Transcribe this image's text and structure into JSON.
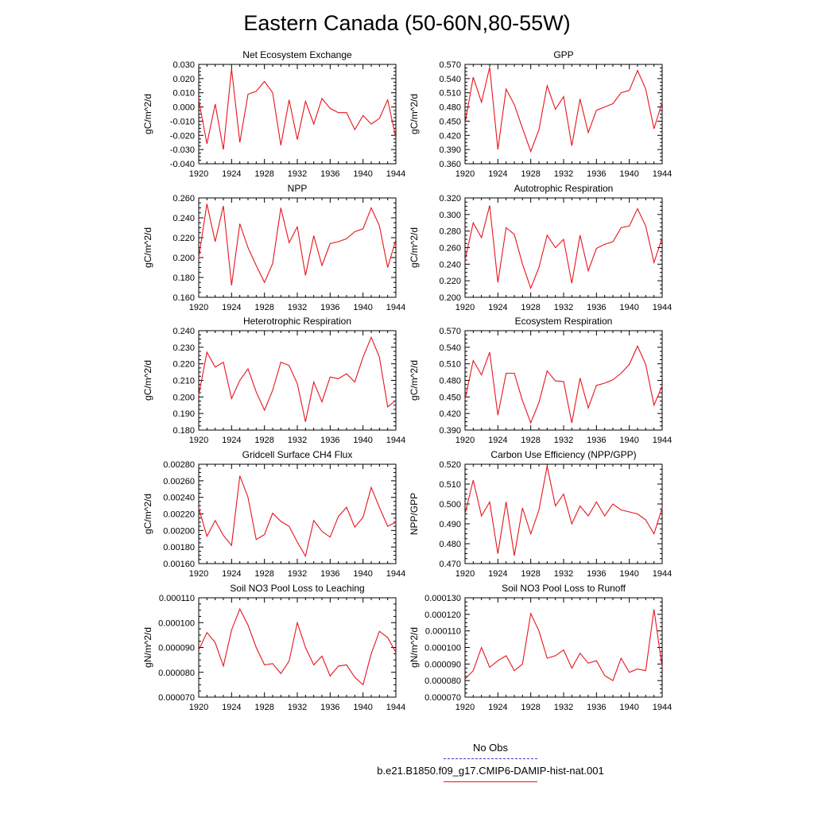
{
  "page_title": "Eastern Canada (50-60N,80-55W)",
  "colors": {
    "series": "#e8141c",
    "no_obs": "#3b3bd4",
    "axis": "#000000"
  },
  "legend": {
    "no_obs": {
      "label": "No Obs",
      "color": "#3b3bd4",
      "style": "dashed"
    },
    "model": {
      "label": "b.e21.B1850.f09_g17.CMIP6-DAMIP-hist-nat.001",
      "color": "#e8141c",
      "style": "solid"
    }
  },
  "chart_data": [
    {
      "type": "line",
      "title": "Net Ecosystem Exchange",
      "ylabel": "gC/m^2/d",
      "xlabel": "",
      "xlim": [
        1920,
        1944
      ],
      "ylim": [
        -0.04,
        0.03
      ],
      "x_ticks": [
        1920,
        1924,
        1928,
        1932,
        1936,
        1940,
        1944
      ],
      "y_ticks": [
        "-0.040",
        "-0.030",
        "-0.020",
        "-0.010",
        "0.000",
        "0.010",
        "0.020",
        "0.030"
      ],
      "x": [
        1920,
        1921,
        1922,
        1923,
        1924,
        1925,
        1926,
        1927,
        1928,
        1929,
        1930,
        1931,
        1932,
        1933,
        1934,
        1935,
        1936,
        1937,
        1938,
        1939,
        1940,
        1941,
        1942,
        1943,
        1944
      ],
      "values": [
        0.005,
        -0.026,
        0.002,
        -0.03,
        0.027,
        -0.025,
        0.009,
        0.011,
        0.018,
        0.01,
        -0.027,
        0.005,
        -0.023,
        0.004,
        -0.012,
        0.006,
        -0.001,
        -0.004,
        -0.004,
        -0.016,
        -0.006,
        -0.012,
        -0.008,
        0.005,
        -0.022
      ]
    },
    {
      "type": "line",
      "title": "GPP",
      "ylabel": "gC/m^2/d",
      "xlabel": "",
      "xlim": [
        1920,
        1944
      ],
      "ylim": [
        0.36,
        0.57
      ],
      "x_ticks": [
        1920,
        1924,
        1928,
        1932,
        1936,
        1940,
        1944
      ],
      "y_ticks": [
        "0.360",
        "0.390",
        "0.420",
        "0.450",
        "0.480",
        "0.510",
        "0.540",
        "0.570"
      ],
      "x": [
        1920,
        1921,
        1922,
        1923,
        1924,
        1925,
        1926,
        1927,
        1928,
        1929,
        1930,
        1931,
        1932,
        1933,
        1934,
        1935,
        1936,
        1937,
        1938,
        1939,
        1940,
        1941,
        1942,
        1943,
        1944
      ],
      "values": [
        0.445,
        0.543,
        0.49,
        0.564,
        0.39,
        0.518,
        0.485,
        0.435,
        0.386,
        0.432,
        0.525,
        0.475,
        0.502,
        0.398,
        0.497,
        0.426,
        0.473,
        0.48,
        0.487,
        0.51,
        0.515,
        0.557,
        0.518,
        0.434,
        0.49
      ]
    },
    {
      "type": "line",
      "title": "NPP",
      "ylabel": "gC/m^2/d",
      "xlabel": "",
      "xlim": [
        1920,
        1944
      ],
      "ylim": [
        0.16,
        0.26
      ],
      "x_ticks": [
        1920,
        1924,
        1928,
        1932,
        1936,
        1940,
        1944
      ],
      "y_ticks": [
        "0.160",
        "0.180",
        "0.200",
        "0.220",
        "0.240",
        "0.260"
      ],
      "x": [
        1920,
        1921,
        1922,
        1923,
        1924,
        1925,
        1926,
        1927,
        1928,
        1929,
        1930,
        1931,
        1932,
        1933,
        1934,
        1935,
        1936,
        1937,
        1938,
        1939,
        1940,
        1941,
        1942,
        1943,
        1944
      ],
      "values": [
        0.2,
        0.254,
        0.216,
        0.252,
        0.172,
        0.234,
        0.21,
        0.192,
        0.175,
        0.194,
        0.25,
        0.215,
        0.231,
        0.182,
        0.222,
        0.192,
        0.214,
        0.216,
        0.219,
        0.226,
        0.229,
        0.25,
        0.232,
        0.19,
        0.218
      ]
    },
    {
      "type": "line",
      "title": "Autotrophic Respiration",
      "ylabel": "gC/m^2/d",
      "xlabel": "",
      "xlim": [
        1920,
        1944
      ],
      "ylim": [
        0.2,
        0.32
      ],
      "x_ticks": [
        1920,
        1924,
        1928,
        1932,
        1936,
        1940,
        1944
      ],
      "y_ticks": [
        "0.200",
        "0.220",
        "0.240",
        "0.260",
        "0.280",
        "0.300",
        "0.320"
      ],
      "x": [
        1920,
        1921,
        1922,
        1923,
        1924,
        1925,
        1926,
        1927,
        1928,
        1929,
        1930,
        1931,
        1932,
        1933,
        1934,
        1935,
        1936,
        1937,
        1938,
        1939,
        1940,
        1941,
        1942,
        1943,
        1944
      ],
      "values": [
        0.245,
        0.29,
        0.272,
        0.311,
        0.218,
        0.284,
        0.276,
        0.24,
        0.211,
        0.236,
        0.275,
        0.26,
        0.27,
        0.217,
        0.275,
        0.232,
        0.259,
        0.264,
        0.267,
        0.284,
        0.286,
        0.307,
        0.286,
        0.242,
        0.272
      ]
    },
    {
      "type": "line",
      "title": "Heterotrophic Respiration",
      "ylabel": "gC/m^2/d",
      "xlabel": "",
      "xlim": [
        1920,
        1944
      ],
      "ylim": [
        0.18,
        0.24
      ],
      "x_ticks": [
        1920,
        1924,
        1928,
        1932,
        1936,
        1940,
        1944
      ],
      "y_ticks": [
        "0.180",
        "0.190",
        "0.200",
        "0.210",
        "0.220",
        "0.230",
        "0.240"
      ],
      "x": [
        1920,
        1921,
        1922,
        1923,
        1924,
        1925,
        1926,
        1927,
        1928,
        1929,
        1930,
        1931,
        1932,
        1933,
        1934,
        1935,
        1936,
        1937,
        1938,
        1939,
        1940,
        1941,
        1942,
        1943,
        1944
      ],
      "values": [
        0.201,
        0.227,
        0.218,
        0.221,
        0.199,
        0.21,
        0.217,
        0.203,
        0.192,
        0.204,
        0.221,
        0.219,
        0.208,
        0.185,
        0.209,
        0.197,
        0.212,
        0.211,
        0.214,
        0.209,
        0.224,
        0.236,
        0.224,
        0.194,
        0.198
      ]
    },
    {
      "type": "line",
      "title": "Ecosystem Respiration",
      "ylabel": "gC/m^2/d",
      "xlabel": "",
      "xlim": [
        1920,
        1944
      ],
      "ylim": [
        0.39,
        0.57
      ],
      "x_ticks": [
        1920,
        1924,
        1928,
        1932,
        1936,
        1940,
        1944
      ],
      "y_ticks": [
        "0.390",
        "0.420",
        "0.450",
        "0.480",
        "0.510",
        "0.540",
        "0.570"
      ],
      "x": [
        1920,
        1921,
        1922,
        1923,
        1924,
        1925,
        1926,
        1927,
        1928,
        1929,
        1930,
        1931,
        1932,
        1933,
        1934,
        1935,
        1936,
        1937,
        1938,
        1939,
        1940,
        1941,
        1942,
        1943,
        1944
      ],
      "values": [
        0.445,
        0.516,
        0.49,
        0.531,
        0.417,
        0.493,
        0.493,
        0.443,
        0.403,
        0.44,
        0.497,
        0.479,
        0.478,
        0.403,
        0.484,
        0.43,
        0.471,
        0.475,
        0.481,
        0.493,
        0.509,
        0.542,
        0.509,
        0.435,
        0.47
      ]
    },
    {
      "type": "line",
      "title": "Gridcell Surface CH4 Flux",
      "ylabel": "gC/m^2/d",
      "xlabel": "",
      "xlim": [
        1920,
        1944
      ],
      "ylim": [
        0.0016,
        0.0028
      ],
      "x_ticks": [
        1920,
        1924,
        1928,
        1932,
        1936,
        1940,
        1944
      ],
      "y_ticks": [
        "0.00160",
        "0.00180",
        "0.00200",
        "0.00220",
        "0.00240",
        "0.00260",
        "0.00280"
      ],
      "x": [
        1920,
        1921,
        1922,
        1923,
        1924,
        1925,
        1926,
        1927,
        1928,
        1929,
        1930,
        1931,
        1932,
        1933,
        1934,
        1935,
        1936,
        1937,
        1938,
        1939,
        1940,
        1941,
        1942,
        1943,
        1944
      ],
      "values": [
        0.00227,
        0.00193,
        0.00212,
        0.00194,
        0.00182,
        0.00266,
        0.0024,
        0.00189,
        0.00195,
        0.00221,
        0.00211,
        0.00205,
        0.00186,
        0.00169,
        0.00212,
        0.00199,
        0.00192,
        0.00217,
        0.00228,
        0.00204,
        0.00216,
        0.00252,
        0.00228,
        0.00205,
        0.0021
      ]
    },
    {
      "type": "line",
      "title": "Carbon Use Efficiency (NPP/GPP)",
      "ylabel": "NPP/GPP",
      "xlabel": "",
      "xlim": [
        1920,
        1944
      ],
      "ylim": [
        0.47,
        0.52
      ],
      "x_ticks": [
        1920,
        1924,
        1928,
        1932,
        1936,
        1940,
        1944
      ],
      "y_ticks": [
        "0.470",
        "0.480",
        "0.490",
        "0.500",
        "0.510",
        "0.520"
      ],
      "x": [
        1920,
        1921,
        1922,
        1923,
        1924,
        1925,
        1926,
        1927,
        1928,
        1929,
        1930,
        1931,
        1932,
        1933,
        1934,
        1935,
        1936,
        1937,
        1938,
        1939,
        1940,
        1941,
        1942,
        1943,
        1944
      ],
      "values": [
        0.495,
        0.512,
        0.494,
        0.501,
        0.475,
        0.501,
        0.474,
        0.498,
        0.485,
        0.497,
        0.519,
        0.499,
        0.505,
        0.49,
        0.499,
        0.494,
        0.501,
        0.494,
        0.5,
        0.497,
        0.496,
        0.495,
        0.492,
        0.485,
        0.498
      ]
    },
    {
      "type": "line",
      "title": "Soil NO3 Pool Loss to Leaching",
      "ylabel": "gN/m^2/d",
      "xlabel": "",
      "xlim": [
        1920,
        1944
      ],
      "ylim": [
        7e-05,
        0.00011
      ],
      "x_ticks": [
        1920,
        1924,
        1928,
        1932,
        1936,
        1940,
        1944
      ],
      "y_ticks": [
        "0.000070",
        "0.000080",
        "0.000090",
        "0.000100",
        "0.000110"
      ],
      "x": [
        1920,
        1921,
        1922,
        1923,
        1924,
        1925,
        1926,
        1927,
        1928,
        1929,
        1930,
        1931,
        1932,
        1933,
        1934,
        1935,
        1936,
        1937,
        1938,
        1939,
        1940,
        1941,
        1942,
        1943,
        1944
      ],
      "values": [
        8.9e-05,
        9.6e-05,
        9.2e-05,
        8.25e-05,
        9.7e-05,
        0.0001055,
        9.9e-05,
        9e-05,
        8.3e-05,
        8.35e-05,
        7.95e-05,
        8.45e-05,
        0.0001,
        9e-05,
        8.3e-05,
        8.65e-05,
        7.85e-05,
        8.25e-05,
        8.3e-05,
        7.8e-05,
        7.5e-05,
        8.75e-05,
        9.65e-05,
        9.4e-05,
        8.8e-05
      ]
    },
    {
      "type": "line",
      "title": "Soil NO3 Pool Loss to Runoff",
      "ylabel": "gN/m^2/d",
      "xlabel": "",
      "xlim": [
        1920,
        1944
      ],
      "ylim": [
        7e-05,
        0.00013
      ],
      "x_ticks": [
        1920,
        1924,
        1928,
        1932,
        1936,
        1940,
        1944
      ],
      "y_ticks": [
        "0.000070",
        "0.000080",
        "0.000090",
        "0.000100",
        "0.000110",
        "0.000120",
        "0.000130"
      ],
      "x": [
        1920,
        1921,
        1922,
        1923,
        1924,
        1925,
        1926,
        1927,
        1928,
        1929,
        1930,
        1931,
        1932,
        1933,
        1934,
        1935,
        1936,
        1937,
        1938,
        1939,
        1940,
        1941,
        1942,
        1943,
        1944
      ],
      "values": [
        8.1e-05,
        8.6e-05,
        0.0001,
        8.8e-05,
        9.2e-05,
        9.5e-05,
        8.6e-05,
        9e-05,
        0.0001205,
        0.00011,
        9.35e-05,
        9.5e-05,
        9.85e-05,
        8.75e-05,
        9.65e-05,
        9.05e-05,
        9.2e-05,
        8.3e-05,
        8e-05,
        9.35e-05,
        8.5e-05,
        8.7e-05,
        8.6e-05,
        0.000123,
        8.8e-05
      ]
    }
  ]
}
